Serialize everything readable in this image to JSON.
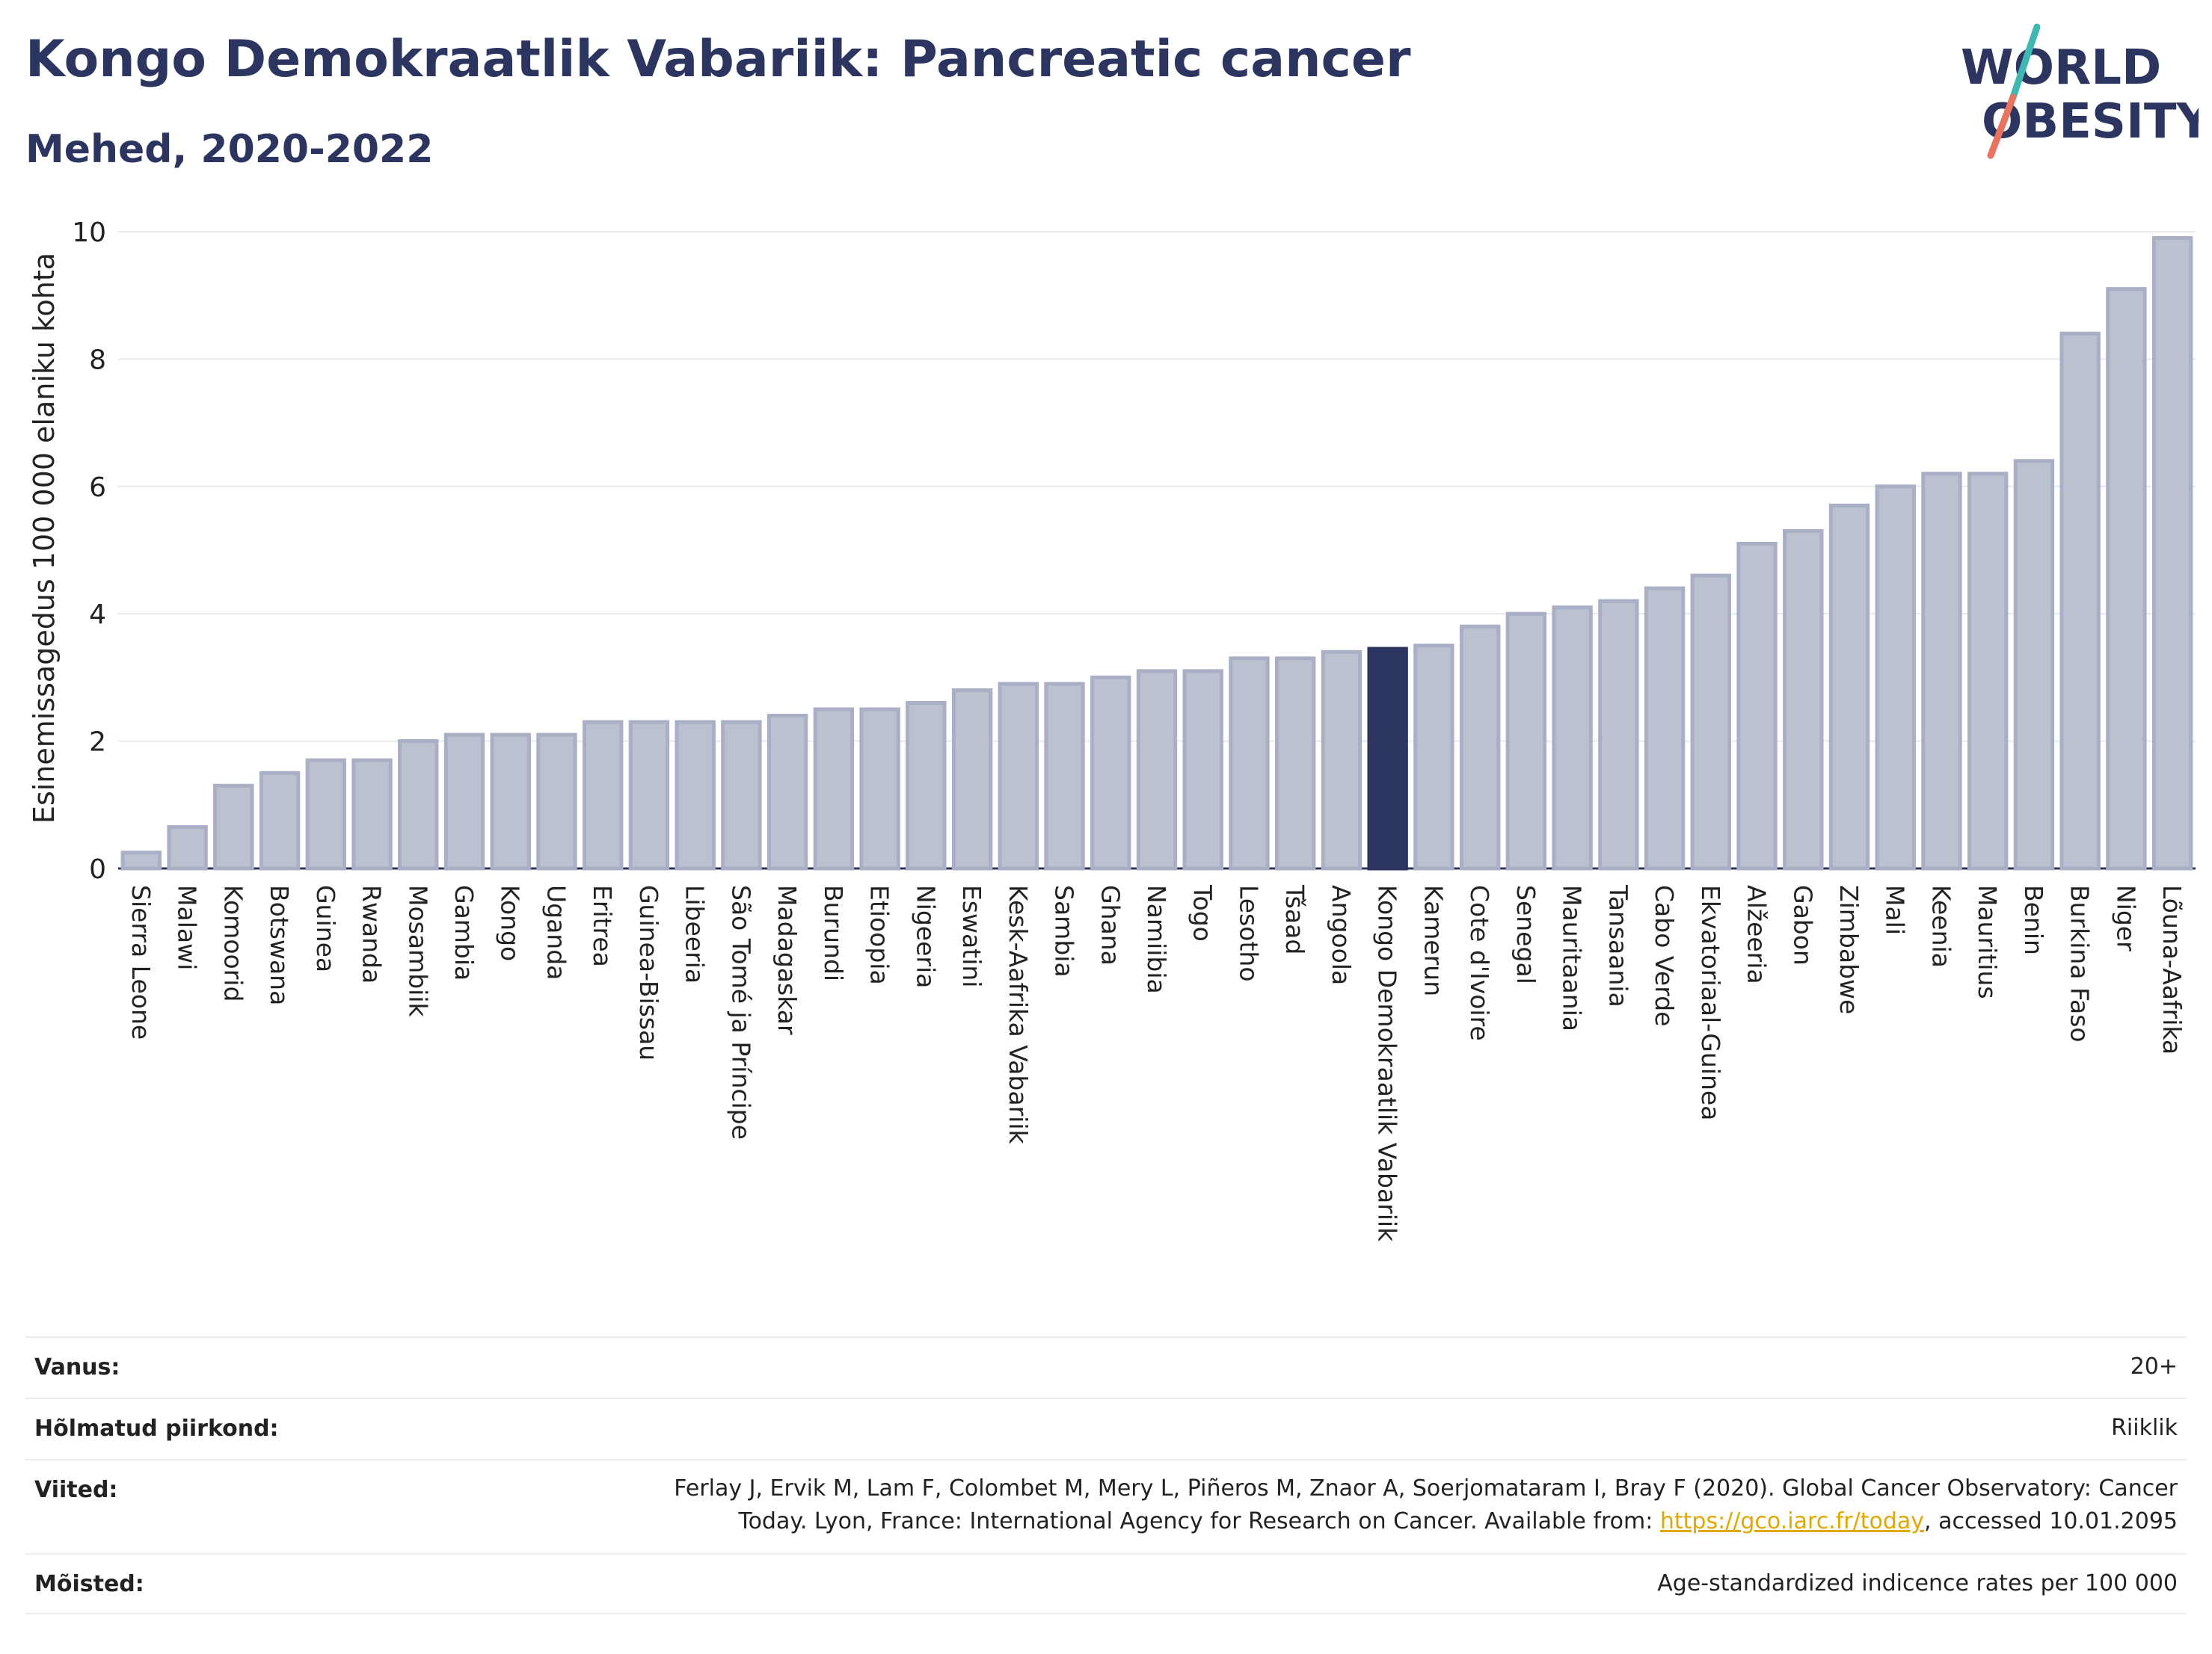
{
  "header": {
    "title": "Kongo Demokraatlik Vabariik: Pancreatic cancer",
    "subtitle": "Mehed, 2020-2022"
  },
  "logo": {
    "line1": "WORLD",
    "line2": "OBESITY"
  },
  "colors": {
    "bar": "#bcc1d0",
    "bar_border": "#a9afc4",
    "highlight": "#2b3560",
    "grid": "#e6e9ee",
    "logo_teal": "#3fb8b4",
    "logo_coral": "#e8735f"
  },
  "chart_data": {
    "type": "bar",
    "ylabel": "Esinemissagedus 100 000 elaniku kohta",
    "ylim": [
      0,
      10
    ],
    "yticks": [
      0,
      2,
      4,
      6,
      8,
      10
    ],
    "highlight": "Kongo Demokraatlik Vabariik",
    "categories": [
      "Sierra Leone",
      "Malawi",
      "Komoorid",
      "Botswana",
      "Guinea",
      "Rwanda",
      "Mosambiik",
      "Gambia",
      "Kongo",
      "Uganda",
      "Eritrea",
      "Guinea-Bissau",
      "Libeeria",
      "São Tomé ja Príncipe",
      "Madagaskar",
      "Burundi",
      "Etioopia",
      "Nigeeria",
      "Eswatini",
      "Kesk-Aafrika Vabariik",
      "Sambia",
      "Ghana",
      "Namiibia",
      "Togo",
      "Lesotho",
      "Tšaad",
      "Angoola",
      "Kongo Demokraatlik Vabariik",
      "Kamerun",
      "Cote d'Ivoire",
      "Senegal",
      "Mauritaania",
      "Tansaania",
      "Cabo Verde",
      "Ekvatoriaal-Guinea",
      "Alžeeria",
      "Gabon",
      "Zimbabwe",
      "Mali",
      "Keenia",
      "Mauritius",
      "Benin",
      "Burkina Faso",
      "Niger",
      "Lõuna-Aafrika"
    ],
    "values": [
      0.25,
      0.65,
      1.3,
      1.5,
      1.7,
      1.7,
      2.0,
      2.1,
      2.1,
      2.1,
      2.3,
      2.3,
      2.3,
      2.3,
      2.4,
      2.5,
      2.5,
      2.6,
      2.8,
      2.9,
      2.9,
      3.0,
      3.1,
      3.1,
      3.3,
      3.3,
      3.4,
      3.45,
      3.5,
      3.8,
      4.0,
      4.1,
      4.2,
      4.4,
      4.6,
      5.1,
      5.3,
      5.7,
      6.0,
      6.2,
      6.2,
      6.4,
      8.4,
      9.1,
      9.9
    ]
  },
  "info": {
    "rows": [
      {
        "label": "Vanus:",
        "value": "20+"
      },
      {
        "label": "Hõlmatud piirkond:",
        "value": "Riiklik"
      },
      {
        "label": "Viited:",
        "value_line1": "Ferlay J, Ervik M, Lam F, Colombet M, Mery L, Piñeros M, Znaor A, Soerjomataram I, Bray F (2020). Global Cancer Observatory: Cancer",
        "value_line2_pre": "Today. Lyon, France: International Agency for Research on Cancer. Available from: ",
        "link": "https://gco.iarc.fr/today",
        "value_line2_post": ", accessed 10.01.2095"
      },
      {
        "label": "Mõisted:",
        "value": "Age-standardized indicence rates per 100 000"
      }
    ]
  }
}
